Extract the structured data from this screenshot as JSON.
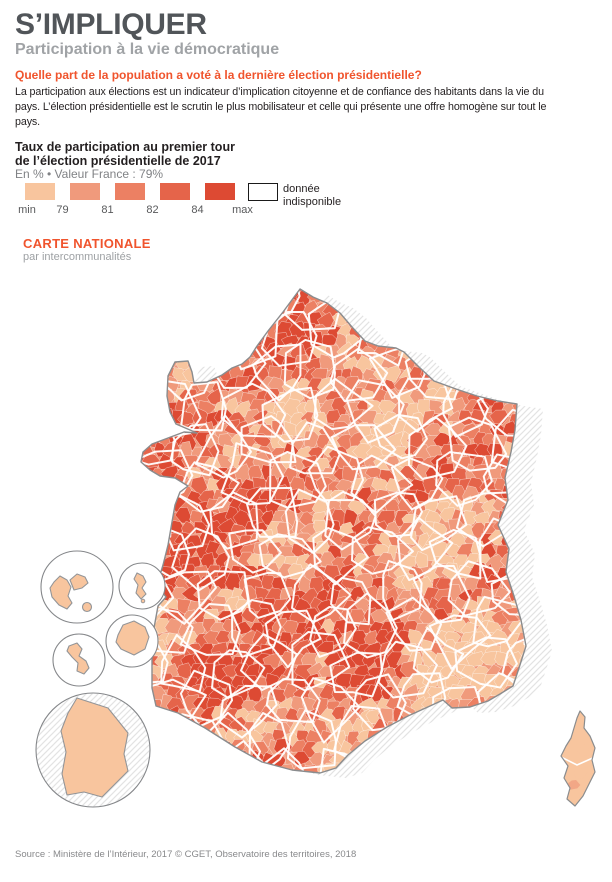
{
  "header": {
    "title": "S’IMPLIQUER",
    "subtitle": "Participation à la vie démocratique"
  },
  "intro": {
    "question": "Quelle part de la population a voté à la dernière élection présidentielle?",
    "body": "La participation aux élections est un indicateur d’implication citoyenne et de confiance des habitants dans la vie du pays. L’élection présidentielle est le scrutin le plus mobilisateur et celle qui présente une offre homogène sur tout le pays."
  },
  "legend": {
    "title_line1": "Taux de participation au premier tour",
    "title_line2": "de l’élection présidentielle de 2017",
    "subtitle": "En % • Valeur France : 79%",
    "ticks": [
      "min",
      "79",
      "81",
      "82",
      "84",
      "max"
    ],
    "classes": [
      {
        "color": "#F8C59E"
      },
      {
        "color": "#F09A7C"
      },
      {
        "color": "#EC8063"
      },
      {
        "color": "#E5644A"
      },
      {
        "color": "#DD4A33"
      }
    ],
    "no_data_label": "donnée indisponible"
  },
  "map_section": {
    "heading": "CARTE NATIONALE",
    "subheading": "par intercommunalités"
  },
  "map": {
    "palette": [
      "#F8C59E",
      "#F09A7C",
      "#EC8063",
      "#E5644A",
      "#DD4A33"
    ],
    "overseas_fill": "#F8C59E",
    "outline_color": "#8A8C8E",
    "island_outline_color": "#939598",
    "department_border_color": "#FFFFFF",
    "hatch_color": "#E3E3E3",
    "circle_stroke": "#85878A"
  },
  "source": {
    "text": "Source : Ministère de l’Intérieur, 2017 © CGET, Observatoire des territoires, 2018"
  },
  "chart_data": {
    "type": "choropleth-map",
    "title": "Taux de participation au premier tour de l’élection présidentielle de 2017",
    "unit": "En %",
    "france_value": "79%",
    "class_breaks": [
      "min",
      "79",
      "81",
      "82",
      "84",
      "max"
    ],
    "class_colors": [
      "#F8C59E",
      "#F09A7C",
      "#EC8063",
      "#E5644A",
      "#DD4A33"
    ],
    "no_data": "donnée indisponible",
    "geography": "France par intercommunalités, avec Corse et outre-mer (Guadeloupe, Mayotte, La Réunion, Martinique, Guyane)"
  }
}
